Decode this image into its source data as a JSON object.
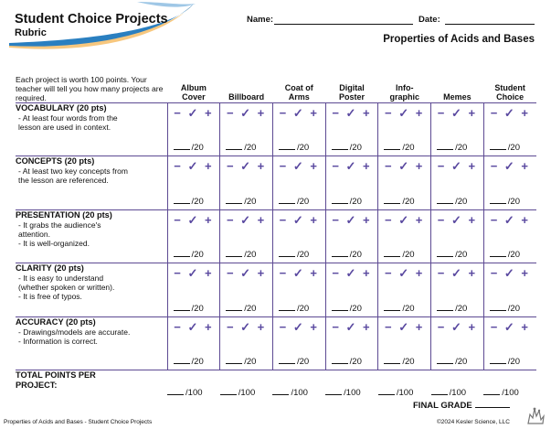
{
  "header": {
    "title": "Student Choice Projects",
    "subtitle": "Rubric",
    "name_label": "Name:",
    "date_label": "Date:",
    "topic": "Properties of Acids and Bases"
  },
  "intro": "Each project is worth 100 points. Your teacher will tell you how many projects are required.",
  "columns": [
    {
      "line1": "Album",
      "line2": "Cover"
    },
    {
      "line1": "",
      "line2": "Billboard"
    },
    {
      "line1": "Coat of",
      "line2": "Arms"
    },
    {
      "line1": "Digital",
      "line2": "Poster"
    },
    {
      "line1": "Info-",
      "line2": "graphic"
    },
    {
      "line1": "",
      "line2": "Memes"
    },
    {
      "line1": "Student",
      "line2": "Choice"
    }
  ],
  "marks": "− ✓ +",
  "row_score": "/20",
  "criteria": [
    {
      "title": "VOCABULARY (20 pts)",
      "lines": [
        "- At least four words from the",
        "  lesson are used in context.",
        ""
      ]
    },
    {
      "title": "CONCEPTS (20 pts)",
      "lines": [
        "- At least two key concepts from",
        "  the lesson are referenced.",
        ""
      ]
    },
    {
      "title": "PRESENTATION (20 pts)",
      "lines": [
        "-  It grabs the audience's",
        "   attention.",
        "-  It is well-organized."
      ]
    },
    {
      "title": "CLARITY (20 pts)",
      "lines": [
        "- It is easy to understand",
        "  (whether spoken or written).",
        "- It is free of typos."
      ]
    },
    {
      "title": "ACCURACY (20 pts)",
      "lines": [
        "- Drawings/models are accurate.",
        "- Information is correct.",
        ""
      ]
    }
  ],
  "total": {
    "label_line1": "TOTAL POINTS PER",
    "label_line2": "PROJECT:",
    "score": "/100"
  },
  "final_grade_label": "FINAL GRADE",
  "footer": {
    "left": "Properties of Acids and Bases - Student Choice Projects",
    "right": "©2024  Kesler Science, LLC"
  },
  "colors": {
    "accent": "#5d4a93",
    "swoosh_blue": "#2a7fc0",
    "swoosh_orange": "#f2a73b"
  }
}
